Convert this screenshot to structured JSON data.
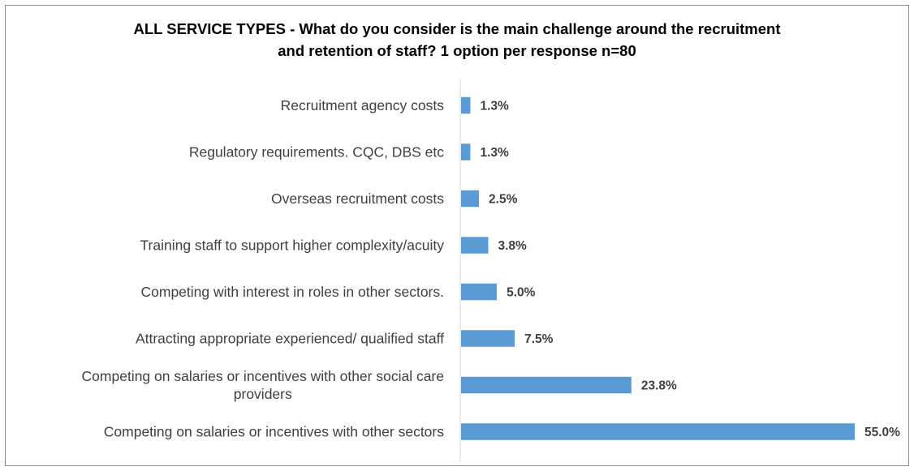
{
  "chart_data": {
    "type": "bar",
    "orientation": "horizontal",
    "title_line1": "ALL SERVICE TYPES - What do you consider is the main challenge around the recruitment",
    "title_line2": "and retention of staff? 1 option per response n=80",
    "categories": [
      [
        "Recruitment agency costs"
      ],
      [
        "Regulatory requirements. CQC, DBS etc"
      ],
      [
        "Overseas recruitment costs"
      ],
      [
        "Training staff to support higher complexity/acuity"
      ],
      [
        "Competing with interest in roles in other sectors."
      ],
      [
        "Attracting appropriate experienced/ qualified staff"
      ],
      [
        "Competing on salaries or incentives with other social care",
        "providers"
      ],
      [
        "Competing on salaries or incentives with other sectors"
      ]
    ],
    "values": [
      1.3,
      1.3,
      2.5,
      3.8,
      5.0,
      7.5,
      23.8,
      55.0
    ],
    "value_labels": [
      "1.3%",
      "1.3%",
      "2.5%",
      "3.8%",
      "5.0%",
      "7.5%",
      "23.8%",
      "55.0%"
    ],
    "xlim": [
      0,
      55.0
    ],
    "grid": false,
    "legend": "none",
    "bar_color": "#5b9bd5",
    "axis_color": "#d9d9d9"
  }
}
